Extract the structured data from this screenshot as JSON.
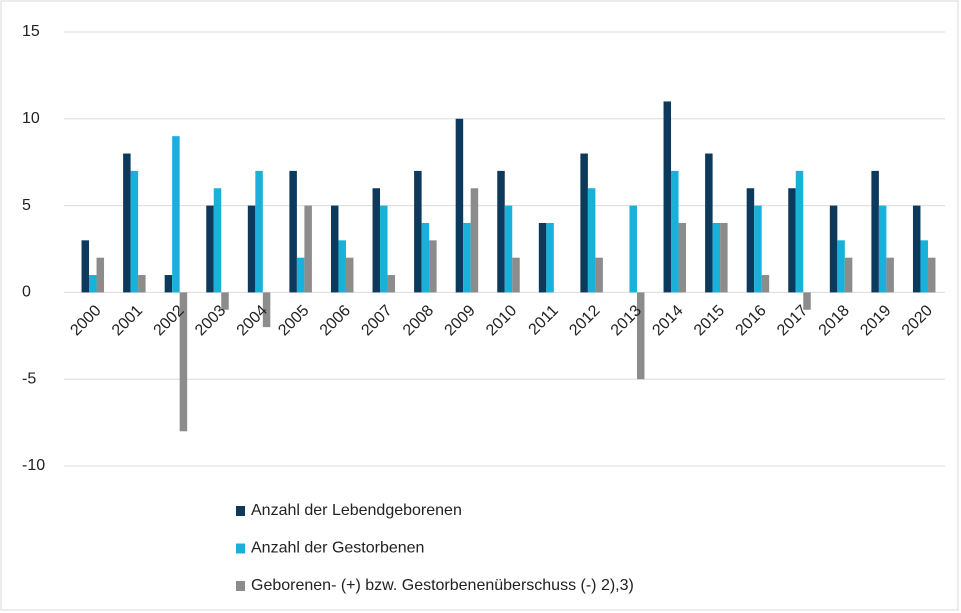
{
  "chart_data": {
    "type": "bar",
    "categories": [
      "2000",
      "2001",
      "2002",
      "2003",
      "2004",
      "2005",
      "2006",
      "2007",
      "2008",
      "2009",
      "2010",
      "2011",
      "2012",
      "2013",
      "2014",
      "2015",
      "2016",
      "2017",
      "2018",
      "2019",
      "2020"
    ],
    "series": [
      {
        "name": "Anzahl der Lebendgeborenen",
        "color": "#0d3a5c",
        "values": [
          3,
          8,
          1,
          5,
          5,
          7,
          5,
          6,
          7,
          10,
          7,
          4,
          8,
          0,
          11,
          8,
          6,
          6,
          5,
          7,
          5
        ]
      },
      {
        "name": "Anzahl der Gestorbenen",
        "color": "#19b0d9",
        "values": [
          1,
          7,
          9,
          6,
          7,
          2,
          3,
          5,
          4,
          4,
          5,
          4,
          6,
          5,
          7,
          4,
          5,
          7,
          3,
          5,
          3
        ]
      },
      {
        "name": "Geborenen- (+) bzw. Gestorbenenüberschuss (-) 2),3)",
        "color": "#8c8c8c",
        "values": [
          2,
          1,
          -8,
          -1,
          -2,
          5,
          2,
          1,
          3,
          6,
          2,
          0,
          2,
          -5,
          4,
          4,
          1,
          -1,
          2,
          2,
          2
        ]
      }
    ],
    "ylim": [
      -10,
      15
    ],
    "yticks": [
      -10,
      -5,
      0,
      5,
      10,
      15
    ],
    "grid": true,
    "legend": "bottom"
  }
}
